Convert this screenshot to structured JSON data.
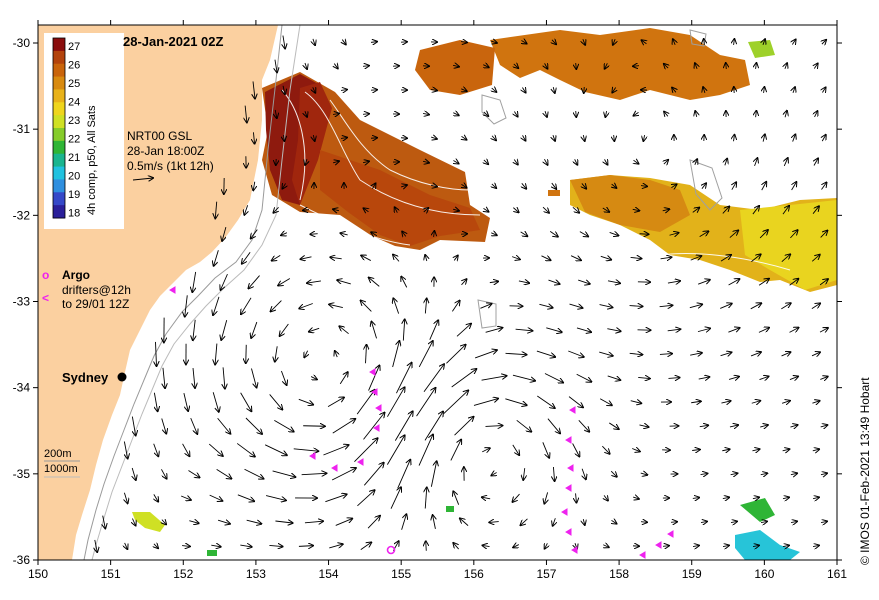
{
  "title": "28-Jan-2021 02Z",
  "credit": "© IMOS 01-Feb-2021 13:49 Hobart",
  "colorbar": {
    "caption": "4h comp, p50, All Sats",
    "labels": [
      "27",
      "26",
      "25",
      "24",
      "23",
      "22",
      "21",
      "20",
      "19",
      "18"
    ],
    "colors": [
      "#8a0d0d",
      "#b3430c",
      "#c9640b",
      "#d88a10",
      "#e8b21a",
      "#efd51d",
      "#cfe024",
      "#86cc2a",
      "#2fb536",
      "#1ab58f",
      "#21c2df",
      "#2f8fdf",
      "#3548c8",
      "#2a1f9a"
    ]
  },
  "current_info": {
    "source": "NRT00 GSL",
    "time": "28-Jan 18:00Z",
    "scale": "0.5m/s (1kt 12h)"
  },
  "argo_legend": {
    "argo": "Argo",
    "drifters_line1": "drifters@12h",
    "drifters_line2": "to 29/01 12Z",
    "argo_symbol": "o",
    "drifter_symbol": "<"
  },
  "city": {
    "name": "Sydney"
  },
  "bathymetry": {
    "contour1": "200m",
    "contour2": "1000m"
  },
  "axes": {
    "x_ticks": [
      "150",
      "151",
      "152",
      "153",
      "154",
      "155",
      "156",
      "157",
      "158",
      "159",
      "160",
      "161"
    ],
    "y_ticks": [
      "-30",
      "-31",
      "-32",
      "-33",
      "-34",
      "-35",
      "-36"
    ]
  },
  "colors": {
    "land": "#fbd0a0",
    "drifter": "#ee22ee",
    "frame": "#000000"
  }
}
